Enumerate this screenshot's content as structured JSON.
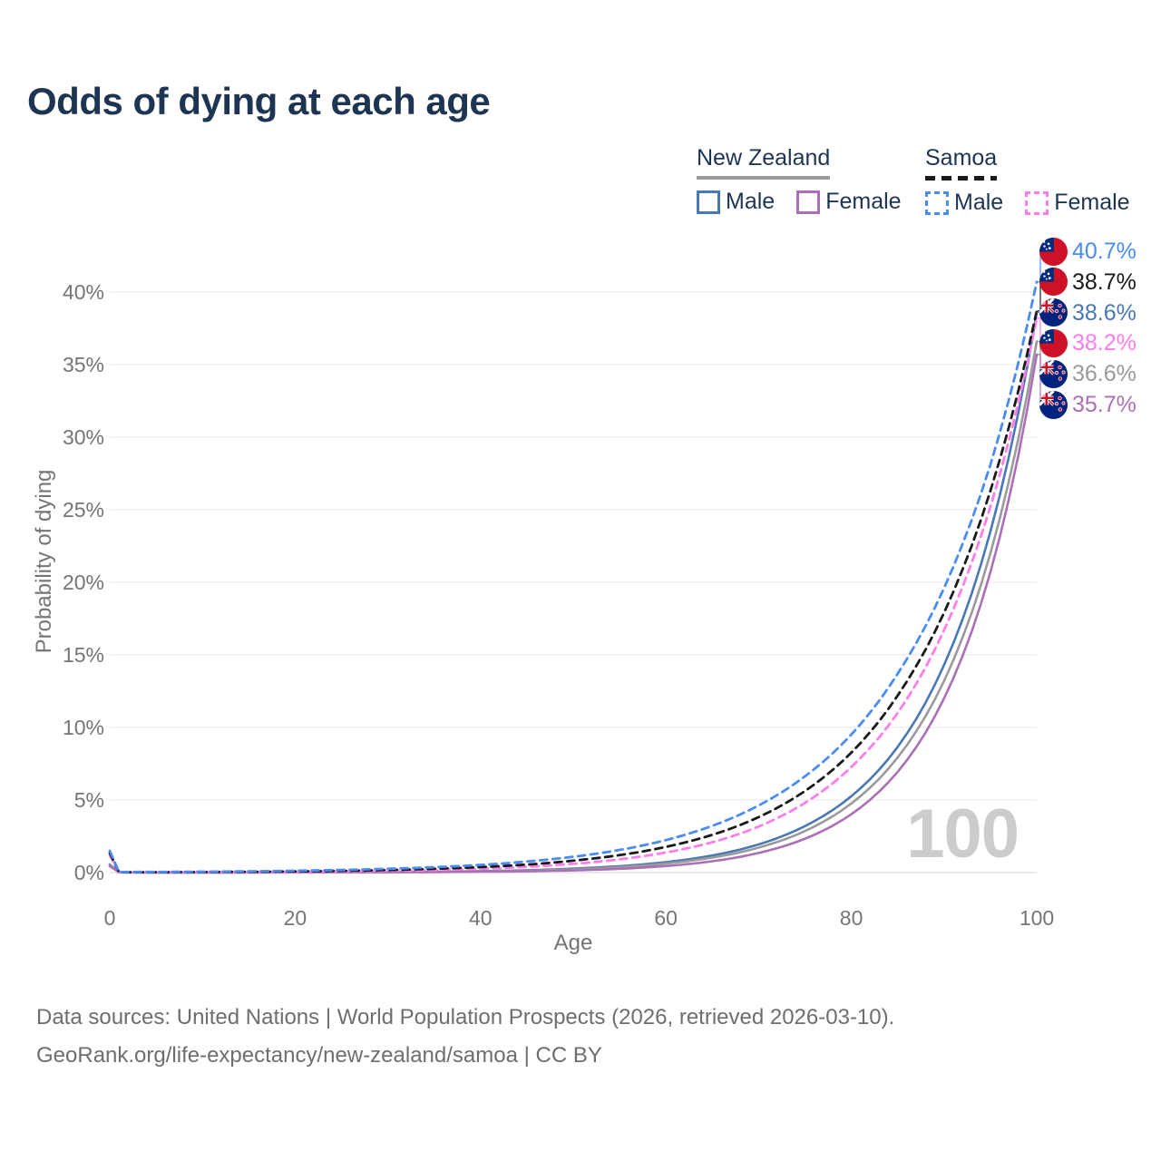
{
  "title": "Odds of dying at each age",
  "watermark": "100",
  "legend": {
    "groups": [
      {
        "name": "New Zealand",
        "line_style": "solid",
        "underline_color": "#9a9a9a",
        "items": [
          {
            "label": "Male",
            "color": "#4878b6"
          },
          {
            "label": "Female",
            "color": "#ab6fb5"
          }
        ]
      },
      {
        "name": "Samoa",
        "line_style": "dashed",
        "underline_color": "#1a1a1a",
        "items": [
          {
            "label": "Male",
            "color": "#4b8bf4"
          },
          {
            "label": "Female",
            "color": "#ff7de8"
          }
        ]
      }
    ]
  },
  "axes": {
    "y_label": "Probability of dying",
    "x_label": "Age",
    "y_ticks": [
      "0%",
      "5%",
      "10%",
      "15%",
      "20%",
      "25%",
      "30%",
      "35%",
      "40%"
    ],
    "x_ticks": [
      "0",
      "20",
      "40",
      "60",
      "80",
      "100"
    ]
  },
  "end_labels": [
    {
      "value": "40.7%",
      "flag": "samoa",
      "color": "#4b8bf4",
      "series": "Samoa Male"
    },
    {
      "value": "38.7%",
      "flag": "samoa",
      "color": "#1a1a1a",
      "series": "Samoa Both sexes"
    },
    {
      "value": "38.6%",
      "flag": "nz",
      "color": "#4878b6",
      "series": "New Zealand Male"
    },
    {
      "value": "38.2%",
      "flag": "samoa",
      "color": "#ff7de8",
      "series": "Samoa Female"
    },
    {
      "value": "36.6%",
      "flag": "nz",
      "color": "#9a9a9a",
      "series": "New Zealand Both sexes"
    },
    {
      "value": "35.7%",
      "flag": "nz",
      "color": "#a871b5",
      "series": "New Zealand Female"
    }
  ],
  "footer": {
    "line1": "Data sources: United Nations | World Population Prospects (2026, retrieved 2026-03-10).",
    "line2": "GeoRank.org/life-expectancy/new-zealand/samoa | CC BY"
  },
  "chart_data": {
    "type": "line",
    "title": "Odds of dying at each age",
    "xlabel": "Age",
    "ylabel": "Probability of dying",
    "xlim": [
      0,
      100
    ],
    "ylim": [
      0,
      43
    ],
    "grid": true,
    "legend_position": "top-right",
    "x": [
      0,
      1,
      5,
      10,
      15,
      20,
      25,
      30,
      35,
      40,
      45,
      50,
      55,
      60,
      65,
      70,
      75,
      80,
      85,
      90,
      95,
      100
    ],
    "y_unit": "percent",
    "series": [
      {
        "name": "New Zealand Male",
        "color": "#4878b6",
        "dash": false,
        "end_value": 38.6,
        "values": [
          0.55,
          0.02,
          0.01,
          0.01,
          0.015,
          0.02,
          0.025,
          0.035,
          0.06,
          0.1,
          0.16,
          0.27,
          0.44,
          0.72,
          1.18,
          1.94,
          3.2,
          5.26,
          8.66,
          14.3,
          23.5,
          38.6
        ]
      },
      {
        "name": "New Zealand Both sexes",
        "color": "#9a9a9a",
        "dash": false,
        "end_value": 36.6,
        "values": [
          0.5,
          0.018,
          0.009,
          0.009,
          0.013,
          0.018,
          0.022,
          0.03,
          0.05,
          0.08,
          0.13,
          0.22,
          0.37,
          0.62,
          1.03,
          1.72,
          2.86,
          4.76,
          7.93,
          13.2,
          22.0,
          36.6
        ]
      },
      {
        "name": "New Zealand Female",
        "color": "#ab6fb5",
        "dash": false,
        "end_value": 35.7,
        "values": [
          0.45,
          0.015,
          0.008,
          0.008,
          0.01,
          0.014,
          0.018,
          0.025,
          0.04,
          0.06,
          0.09,
          0.15,
          0.26,
          0.45,
          0.78,
          1.35,
          2.33,
          4.02,
          6.94,
          12.0,
          20.7,
          35.7
        ]
      },
      {
        "name": "Samoa Female",
        "color": "#ff7de8",
        "dash": true,
        "end_value": 38.2,
        "values": [
          1.2,
          0.02,
          0.02,
          0.022,
          0.033,
          0.05,
          0.076,
          0.115,
          0.174,
          0.264,
          0.4,
          0.6,
          0.91,
          1.38,
          2.09,
          3.17,
          4.8,
          7.27,
          11.0,
          16.7,
          25.2,
          38.2
        ]
      },
      {
        "name": "Samoa Both sexes",
        "color": "#1a1a1a",
        "dash": true,
        "end_value": 38.7,
        "values": [
          1.35,
          0.025,
          0.025,
          0.037,
          0.055,
          0.08,
          0.12,
          0.175,
          0.26,
          0.38,
          0.55,
          0.82,
          1.2,
          1.77,
          2.6,
          3.82,
          5.62,
          8.26,
          12.2,
          17.9,
          26.3,
          38.7
        ]
      },
      {
        "name": "Samoa Male",
        "color": "#4b8bf4",
        "dash": true,
        "end_value": 40.7,
        "values": [
          1.5,
          0.04,
          0.042,
          0.061,
          0.087,
          0.125,
          0.18,
          0.26,
          0.37,
          0.53,
          0.76,
          1.09,
          1.56,
          2.24,
          3.22,
          4.62,
          6.63,
          9.51,
          13.7,
          19.6,
          28.1,
          40.7
        ]
      }
    ]
  }
}
